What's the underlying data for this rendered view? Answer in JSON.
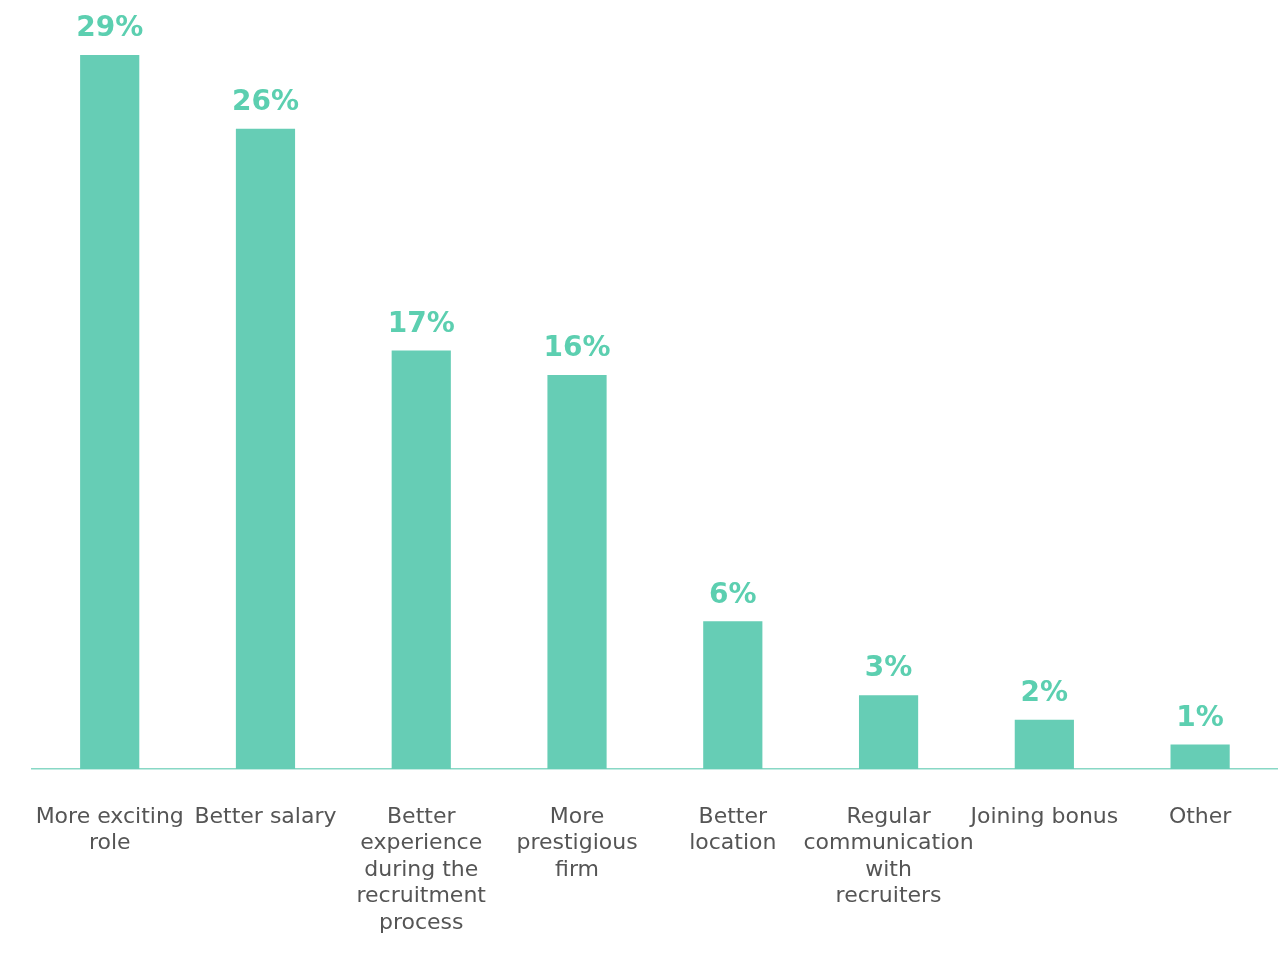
{
  "chart_data": {
    "type": "bar",
    "categories": [
      "More exciting role",
      "Better salary",
      "Better experience during the recruitment process",
      "More prestigious firm",
      "Better location",
      "Regular communication with recruiters",
      "Joining bonus",
      "Other"
    ],
    "values": [
      29,
      26,
      17,
      16,
      6,
      3,
      2,
      1
    ],
    "value_labels": [
      "29%",
      "26%",
      "17%",
      "16%",
      "6%",
      "3%",
      "2%",
      "1%"
    ],
    "color": "#66cdb5",
    "grid": false,
    "legend": false
  }
}
